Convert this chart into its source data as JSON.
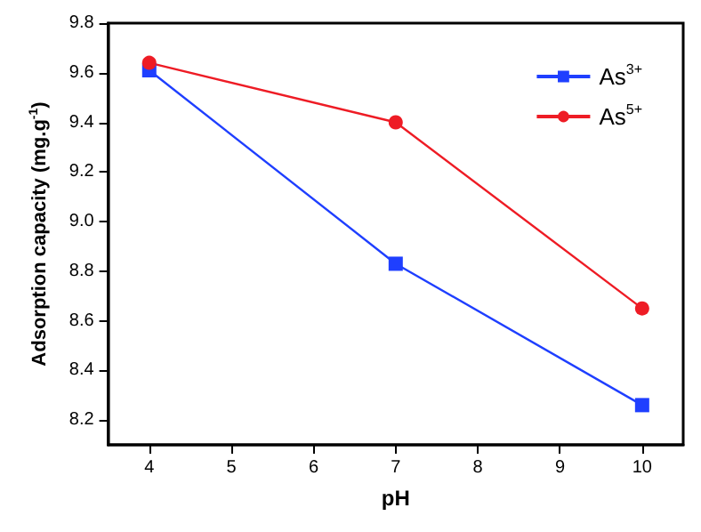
{
  "chart_data": {
    "type": "line",
    "xlabel": "pH",
    "ylabel": "Adsorption capacity (mg.g$^{-1}$)",
    "x": [
      4,
      7,
      10
    ],
    "series": [
      {
        "name": "As$^{3+}$",
        "color": "#1f3fff",
        "marker": "square",
        "values": [
          9.61,
          8.83,
          8.26
        ]
      },
      {
        "name": "As$^{5+}$",
        "color": "#ee1c25",
        "marker": "circle",
        "values": [
          9.64,
          9.4,
          8.65
        ]
      }
    ],
    "xlim": [
      3.5,
      10.5
    ],
    "xticks": [
      4,
      5,
      6,
      7,
      8,
      9,
      10
    ],
    "ylim": [
      8.1,
      9.8
    ],
    "yticks": [
      8.2,
      8.4,
      8.6,
      8.8,
      {
        "value": 9,
        "label": "9.0"
      },
      9.2,
      9.4,
      9.6,
      9.8
    ],
    "grid": false,
    "legend": "top right",
    "line_style": "solid"
  }
}
